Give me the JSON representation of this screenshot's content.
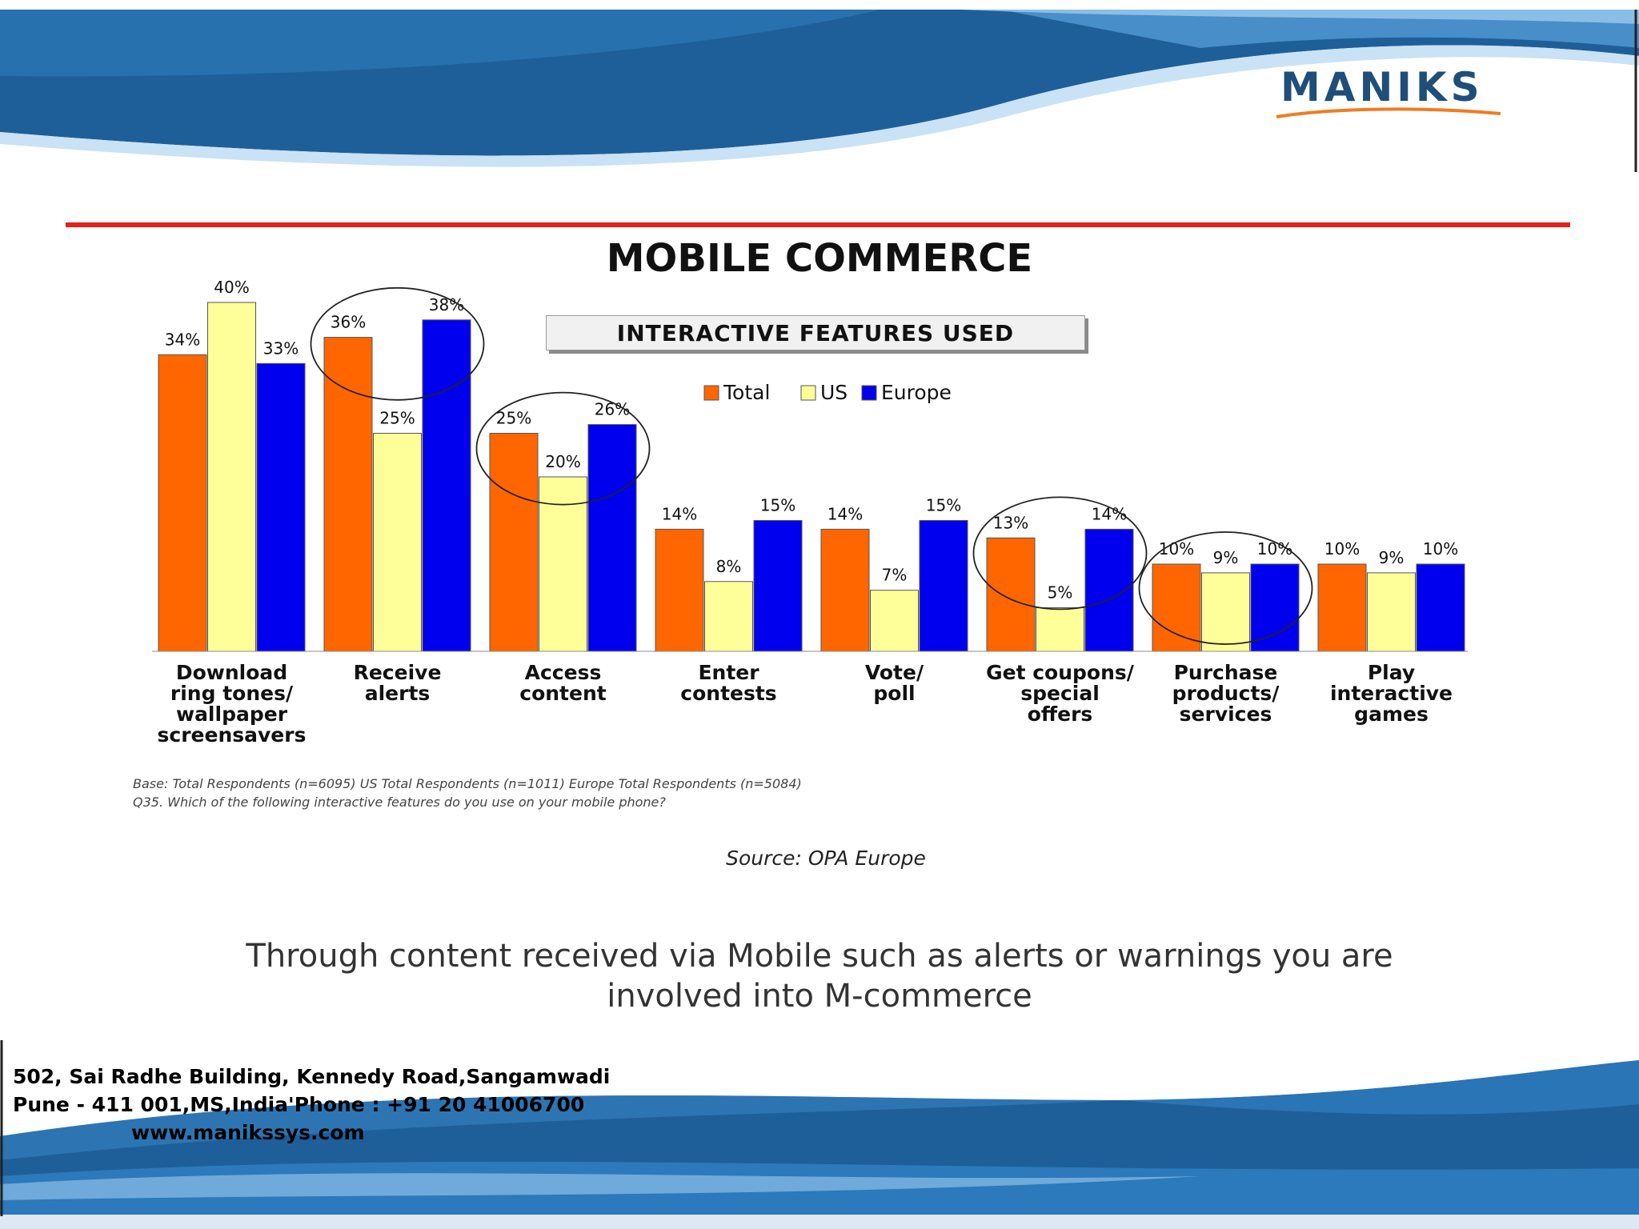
{
  "header": {
    "logo_text": "MANIKS"
  },
  "colors": {
    "total": "#ff6600",
    "us": "#ffff99",
    "europe": "#0000ee",
    "divider": "#e3201b",
    "brand_blue": "#1f6fb3"
  },
  "title": "MOBILE COMMERCE",
  "chart_data": {
    "type": "bar",
    "subtitle": "INTERACTIVE FEATURES USED",
    "categories": [
      "Download\nring tones/\nwallpaper\nscreensavers",
      "Receive\nalerts",
      "Access\ncontent",
      "Enter\ncontests",
      "Vote/\npoll",
      "Get coupons/\nspecial\noffers",
      "Purchase\nproducts/\nservices",
      "Play\ninteractive\ngames"
    ],
    "series": [
      {
        "name": "Total",
        "color": "#ff6600",
        "values": [
          34,
          36,
          25,
          14,
          14,
          13,
          10,
          10
        ]
      },
      {
        "name": "US",
        "color": "#ffff99",
        "values": [
          40,
          25,
          20,
          8,
          7,
          5,
          9,
          9
        ]
      },
      {
        "name": "Europe",
        "color": "#0000ee",
        "values": [
          33,
          38,
          26,
          15,
          15,
          14,
          10,
          10
        ]
      }
    ],
    "value_suffix": "%",
    "legend_position": "top-center",
    "highlighted_categories": [
      1,
      2,
      5,
      6
    ],
    "grid": false,
    "ylim": [
      0,
      40
    ],
    "notes": [
      "Base: Total Respondents (n=6095)  US Total Respondents (n=1011)  Europe Total Respondents (n=5084)",
      "Q35. Which of the following interactive features do you use on your mobile phone?"
    ],
    "source": "Source:  OPA Europe"
  },
  "caption_lines": [
    "Through content received via Mobile such as alerts or warnings you are",
    "involved into M-commerce"
  ],
  "footer": {
    "address_line1": "502, Sai Radhe Building, Kennedy Road,Sangamwadi",
    "address_line2": "Pune - 411 001,MS,India'Phone : +91 20 41006700",
    "website": "www.manikssys.com"
  }
}
